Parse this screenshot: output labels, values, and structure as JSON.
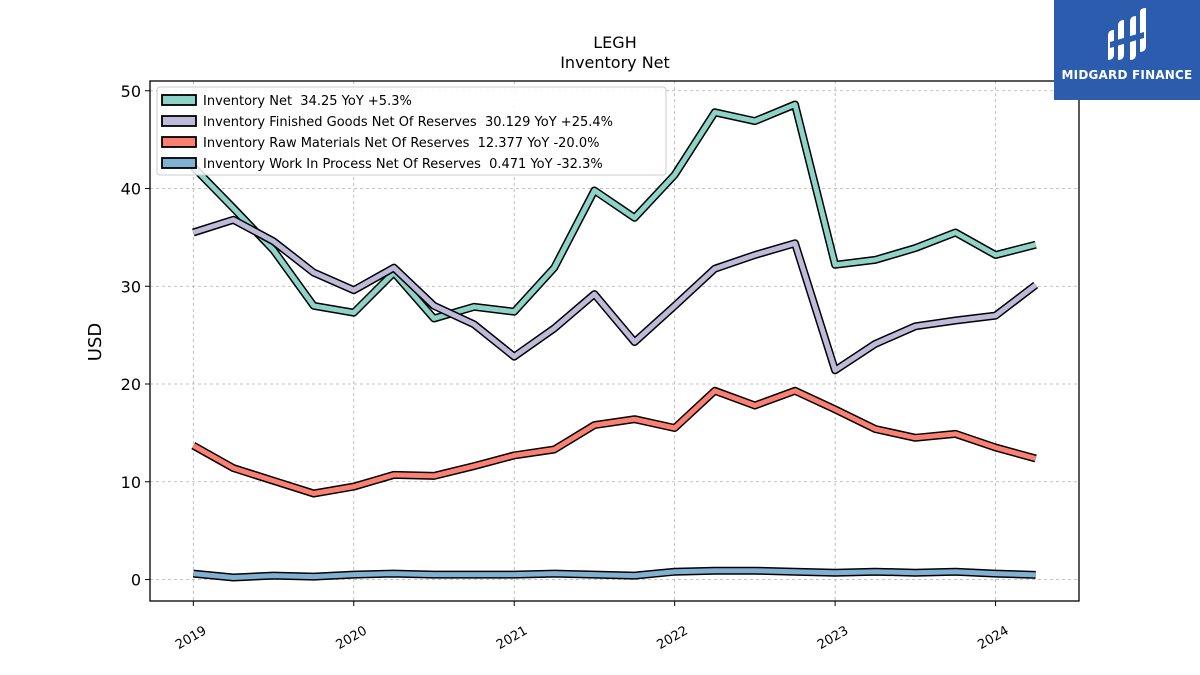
{
  "brand": {
    "name": "MIDGARD FINANCE",
    "bg_color": "#2c5cad"
  },
  "chart_data": {
    "type": "line",
    "title": "LEGH",
    "subtitle": "Inventory Net",
    "xlabel": "",
    "ylabel": "USD",
    "ylim": [
      -2.2,
      51
    ],
    "xlim": [
      2018.73,
      2024.52
    ],
    "yticks": [
      0,
      10,
      20,
      30,
      40,
      50
    ],
    "xticks": [
      2019,
      2020,
      2021,
      2022,
      2023,
      2024
    ],
    "xtick_labels": [
      "2019",
      "2020",
      "2021",
      "2022",
      "2023",
      "2024"
    ],
    "grid": true,
    "legend_position": "top-left",
    "x": [
      2019.0,
      2019.25,
      2019.5,
      2019.75,
      2020.0,
      2020.25,
      2020.5,
      2020.75,
      2021.0,
      2021.25,
      2021.5,
      2021.75,
      2022.0,
      2022.25,
      2022.5,
      2022.75,
      2023.0,
      2023.25,
      2023.5,
      2023.75,
      2024.0,
      2024.25
    ],
    "series": [
      {
        "name": "Inventory Net",
        "legend": "Inventory Net  34.25 YoY +5.3%",
        "color": "#8dd3c7",
        "values": [
          42.2,
          38.0,
          33.7,
          28.0,
          27.3,
          31.4,
          26.7,
          27.9,
          27.4,
          31.9,
          39.8,
          37.0,
          41.4,
          47.8,
          46.9,
          48.6,
          32.2,
          32.7,
          33.9,
          35.5,
          33.2,
          34.25
        ]
      },
      {
        "name": "Inventory Finished Goods Net Of Reserves",
        "legend": "Inventory Finished Goods Net Of Reserves  30.129 YoY +25.4%",
        "color": "#bebada",
        "values": [
          35.5,
          36.8,
          34.6,
          31.4,
          29.6,
          31.9,
          28.0,
          26.1,
          22.8,
          25.7,
          29.2,
          24.3,
          28.0,
          31.8,
          33.2,
          34.4,
          21.4,
          24.1,
          25.9,
          26.5,
          27.0,
          30.129
        ]
      },
      {
        "name": "Inventory Raw Materials Net Of Reserves",
        "legend": "Inventory Raw Materials Net Of Reserves  12.377 YoY -20.0%",
        "color": "#fb8072",
        "values": [
          13.7,
          11.4,
          10.1,
          8.8,
          9.5,
          10.7,
          10.6,
          11.6,
          12.7,
          13.3,
          15.8,
          16.4,
          15.5,
          19.3,
          17.8,
          19.3,
          17.4,
          15.4,
          14.5,
          14.9,
          13.5,
          12.377
        ]
      },
      {
        "name": "Inventory Work In Process Net Of Reserves",
        "legend": "Inventory Work In Process Net Of Reserves  0.471 YoY -32.3%",
        "color": "#80b1d3",
        "values": [
          0.6,
          0.2,
          0.4,
          0.3,
          0.5,
          0.6,
          0.5,
          0.5,
          0.5,
          0.6,
          0.5,
          0.4,
          0.8,
          0.9,
          0.9,
          0.8,
          0.7,
          0.8,
          0.7,
          0.8,
          0.6,
          0.471
        ]
      }
    ]
  }
}
